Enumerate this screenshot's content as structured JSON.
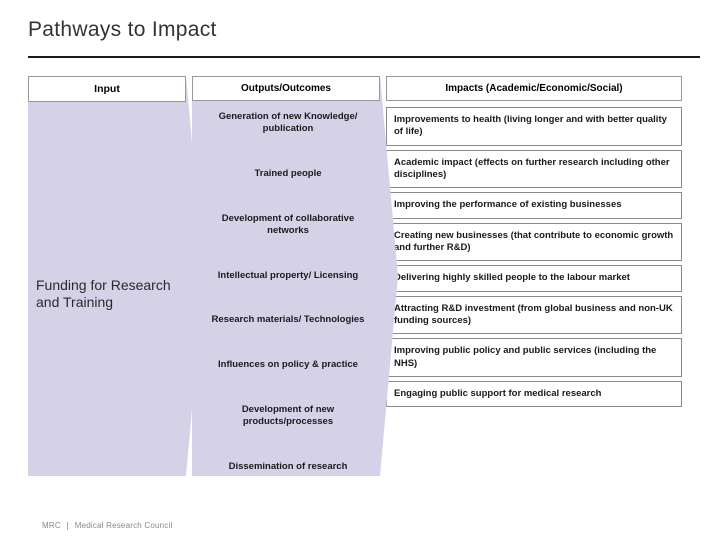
{
  "title": "Pathways to Impact",
  "columns": {
    "input": {
      "header": "Input",
      "body": "Funding for Research and Training"
    },
    "outputs": {
      "header": "Outputs/Outcomes",
      "items": [
        "Generation of new Knowledge/ publication",
        "Trained people",
        "Development of collaborative networks",
        "Intellectual property/ Licensing",
        "Research materials/ Technologies",
        "Influences on policy & practice",
        "Development of new products/processes",
        "Dissemination of research"
      ]
    },
    "impacts": {
      "header": "Impacts (Academic/Economic/Social)",
      "items": [
        "Improvements to health (living longer and with better quality of life)",
        "Academic impact (effects on further research including other disciplines)",
        "Improving the performance of existing businesses",
        "Creating new businesses (that contribute to economic growth and further R&D)",
        "Delivering highly skilled people to the labour market",
        "Attracting R&D investment (from global business and non-UK funding sources)",
        "Improving public policy and public services (including the NHS)",
        "Engaging public support for medical research"
      ]
    }
  },
  "footer": {
    "org": "MRC",
    "tagline": "Medical Research Council"
  },
  "colors": {
    "panel_bg": "#d5d2e8",
    "border": "#8a8a8a",
    "title": "#333333",
    "text": "#1a1a1a",
    "divider": "#1a1a1a"
  }
}
